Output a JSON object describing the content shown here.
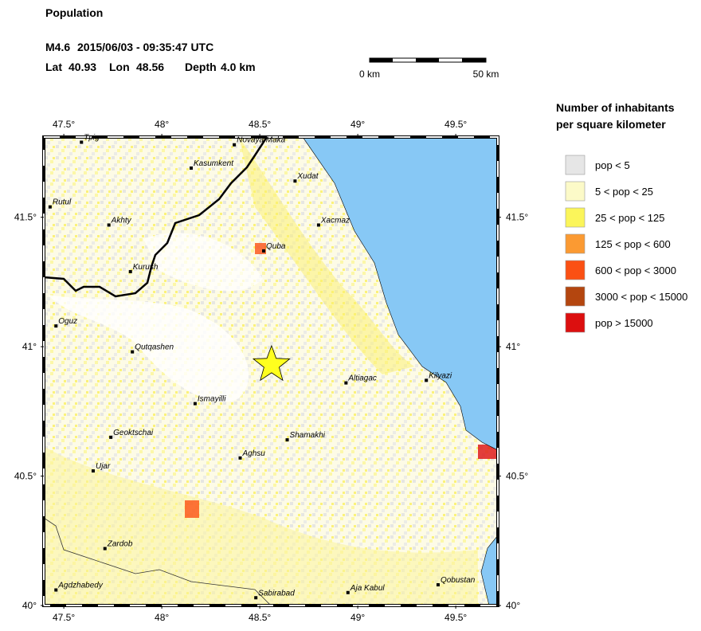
{
  "header": {
    "title": "Population",
    "magnitude": "M4.6",
    "datetime": "2015/06/03 - 09:35:47 UTC",
    "lat_label": "Lat",
    "lat": 40.93,
    "lon_label": "Lon",
    "lon": 48.56,
    "depth_label": "Depth",
    "depth": "4.0 km"
  },
  "scale_bar": {
    "start_label": "0 km",
    "end_label": "50 km"
  },
  "map": {
    "xlim": [
      47.398,
      49.715
    ],
    "ylim": [
      40,
      41.81
    ],
    "xticks": [
      {
        "value": 47.5,
        "label": "47.5°"
      },
      {
        "value": 48,
        "label": "48°"
      },
      {
        "value": 48.5,
        "label": "48.5°"
      },
      {
        "value": 49,
        "label": "49°"
      },
      {
        "value": 49.5,
        "label": "49.5°"
      }
    ],
    "yticks": [
      {
        "value": 40,
        "label": "40°"
      },
      {
        "value": 40.5,
        "label": "40.5°"
      },
      {
        "value": 41,
        "label": "41°"
      },
      {
        "value": 41.5,
        "label": "41.5°"
      }
    ],
    "cities": [
      {
        "name": "Tpig",
        "lon": 47.59,
        "lat": 41.79
      },
      {
        "name": "Novaya Maka",
        "lon": 48.37,
        "lat": 41.78
      },
      {
        "name": "Kasumkent",
        "lon": 48.15,
        "lat": 41.69
      },
      {
        "name": "Xudat",
        "lon": 48.68,
        "lat": 41.64
      },
      {
        "name": "Rutul",
        "lon": 47.43,
        "lat": 41.54
      },
      {
        "name": "Akhty",
        "lon": 47.73,
        "lat": 41.47
      },
      {
        "name": "Xacmaz",
        "lon": 48.8,
        "lat": 41.47
      },
      {
        "name": "Quba",
        "lon": 48.52,
        "lat": 41.37
      },
      {
        "name": "Kurush",
        "lon": 47.84,
        "lat": 41.29
      },
      {
        "name": "Oguz",
        "lon": 47.46,
        "lat": 41.08
      },
      {
        "name": "Qutqashen",
        "lon": 47.85,
        "lat": 40.98
      },
      {
        "name": "Altiagac",
        "lon": 48.94,
        "lat": 40.86
      },
      {
        "name": "Kilyazi",
        "lon": 49.35,
        "lat": 40.87
      },
      {
        "name": "Ismayilli",
        "lon": 48.17,
        "lat": 40.78
      },
      {
        "name": "Geoktschai",
        "lon": 47.74,
        "lat": 40.65
      },
      {
        "name": "Shamakhi",
        "lon": 48.64,
        "lat": 40.64
      },
      {
        "name": "Aghsu",
        "lon": 48.4,
        "lat": 40.57
      },
      {
        "name": "Ujar",
        "lon": 47.65,
        "lat": 40.52
      },
      {
        "name": "Zardob",
        "lon": 47.71,
        "lat": 40.22
      },
      {
        "name": "Qobustan",
        "lon": 49.41,
        "lat": 40.08
      },
      {
        "name": "Agdzhabedy",
        "lon": 47.46,
        "lat": 40.06
      },
      {
        "name": "Sabirabad",
        "lon": 48.48,
        "lat": 40.03
      },
      {
        "name": "Aja Kabul",
        "lon": 48.95,
        "lat": 40.05
      }
    ]
  },
  "legend": {
    "title_line1": "Number of inhabitants",
    "title_line2": "per square kilometer",
    "items": [
      {
        "label": "pop < 5",
        "color": "#e6e6e6"
      },
      {
        "label": "5 < pop < 25",
        "color": "#fcfac8"
      },
      {
        "label": "25 < pop < 125",
        "color": "#fbf55a"
      },
      {
        "label": "125 < pop < 600",
        "color": "#fb9a32"
      },
      {
        "label": "600 < pop < 3000",
        "color": "#fb5014"
      },
      {
        "label": "3000 < pop < 15000",
        "color": "#b4460f"
      },
      {
        "label": "pop > 15000",
        "color": "#dc0f0f"
      }
    ]
  }
}
